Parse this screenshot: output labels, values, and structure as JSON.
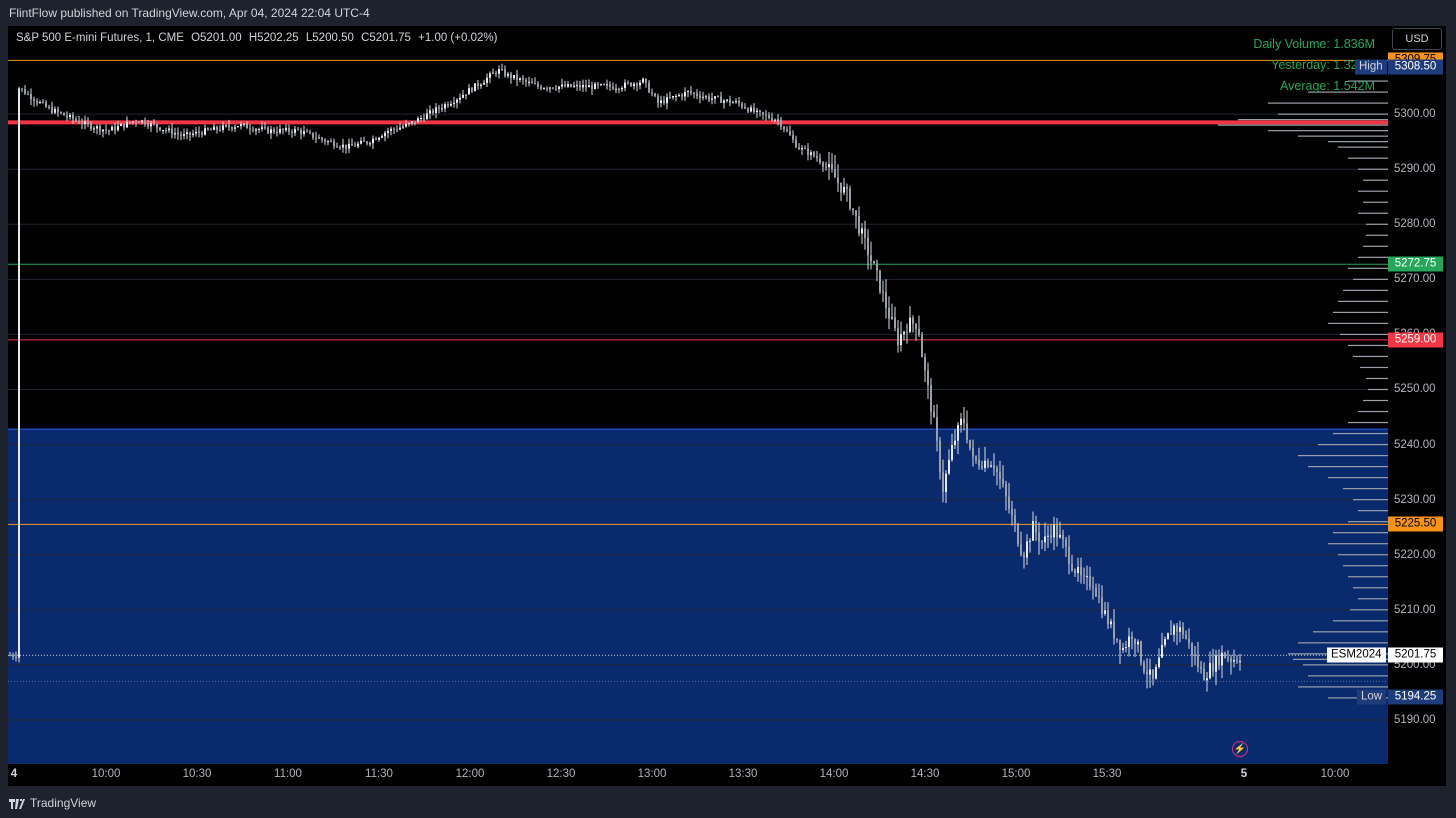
{
  "header": {
    "published": "FlintFlow published on TradingView.com, Apr 04, 2024 22:04 UTC-4"
  },
  "legend": {
    "symbol": "S&P 500 E-mini Futures, 1, CME",
    "open": "O5201.00",
    "high": "H5202.25",
    "low": "L5200.50",
    "close": "C5201.75",
    "change": "+1.00 (+0.02%)"
  },
  "volume": {
    "daily": "Daily Volume: 1.836M",
    "yesterday": "Yesterday: 1.322M",
    "average": "Average: 1.542M"
  },
  "currency": "USD",
  "colors": {
    "background": "#000000",
    "zone": "#0a2a6e",
    "up": "#26a65b",
    "down": "#f23645",
    "orange": "#f7931a",
    "high_low": "#1f3c7a"
  },
  "chart_data": {
    "type": "candlestick",
    "symbol": "ESM2024",
    "ylim": [
      5182,
      5316
    ],
    "y_ticks": [
      5190,
      5200,
      5210,
      5220,
      5230,
      5240,
      5250,
      5260,
      5270,
      5280,
      5290,
      5300
    ],
    "x_ticks": [
      "4",
      "10:00",
      "10:30",
      "11:00",
      "11:30",
      "12:00",
      "12:30",
      "13:00",
      "13:30",
      "14:00",
      "14:30",
      "15:00",
      "15:30",
      "5",
      "10:00"
    ],
    "price_labels": {
      "orange_high": "5309.75",
      "session_high": "5308.50",
      "green": "5272.75",
      "red": "5259.00",
      "orange_low": "5225.50",
      "last": "5201.75",
      "session_low": "5194.25"
    },
    "high_label": "High",
    "low_label": "Low",
    "symbol_label": "ESM2024",
    "levels": [
      {
        "price": 5309.75,
        "color": "#f7931a",
        "width": 1
      },
      {
        "price": 5298.5,
        "color": "#f23645",
        "width": 4
      },
      {
        "price": 5272.75,
        "color": "#26a65b",
        "width": 1
      },
      {
        "price": 5259.0,
        "color": "#f23645",
        "width": 1
      },
      {
        "price": 5225.5,
        "color": "#f7931a",
        "width": 1
      }
    ],
    "zone": {
      "top": 5242.8,
      "bottom": 5180
    },
    "path_points": [
      [
        9,
        5305
      ],
      [
        40,
        5301
      ],
      [
        80,
        5298
      ],
      [
        100,
        5297
      ],
      [
        130,
        5299
      ],
      [
        160,
        5297
      ],
      [
        175,
        5296
      ],
      [
        200,
        5297
      ],
      [
        230,
        5298
      ],
      [
        260,
        5297
      ],
      [
        290,
        5297
      ],
      [
        320,
        5295
      ],
      [
        340,
        5294
      ],
      [
        360,
        5295
      ],
      [
        380,
        5297
      ],
      [
        400,
        5298
      ],
      [
        420,
        5300
      ],
      [
        450,
        5303
      ],
      [
        475,
        5306
      ],
      [
        490,
        5308
      ],
      [
        500,
        5307
      ],
      [
        530,
        5305
      ],
      [
        580,
        5305
      ],
      [
        610,
        5305
      ],
      [
        635,
        5306
      ],
      [
        650,
        5302
      ],
      [
        680,
        5304
      ],
      [
        700,
        5303
      ],
      [
        730,
        5302
      ],
      [
        750,
        5300
      ],
      [
        770,
        5299
      ],
      [
        790,
        5294
      ],
      [
        810,
        5292
      ],
      [
        825,
        5289
      ],
      [
        840,
        5285
      ],
      [
        850,
        5280
      ],
      [
        860,
        5275
      ],
      [
        870,
        5270
      ],
      [
        880,
        5264
      ],
      [
        890,
        5259
      ],
      [
        900,
        5262
      ],
      [
        910,
        5262
      ],
      [
        915,
        5255
      ],
      [
        925,
        5245
      ],
      [
        935,
        5232
      ],
      [
        945,
        5240
      ],
      [
        955,
        5245
      ],
      [
        965,
        5237
      ],
      [
        975,
        5237
      ],
      [
        985,
        5237
      ],
      [
        995,
        5232
      ],
      [
        1005,
        5226
      ],
      [
        1015,
        5220
      ],
      [
        1025,
        5225
      ],
      [
        1035,
        5222
      ],
      [
        1045,
        5225
      ],
      [
        1055,
        5222
      ],
      [
        1065,
        5218
      ],
      [
        1075,
        5215
      ],
      [
        1085,
        5215
      ],
      [
        1095,
        5210
      ],
      [
        1105,
        5206
      ],
      [
        1115,
        5203
      ],
      [
        1125,
        5206
      ],
      [
        1135,
        5200
      ],
      [
        1145,
        5197
      ],
      [
        1155,
        5203
      ],
      [
        1165,
        5207
      ],
      [
        1175,
        5206
      ],
      [
        1185,
        5202
      ],
      [
        1195,
        5198
      ],
      [
        1205,
        5200
      ],
      [
        1215,
        5202
      ],
      [
        1225,
        5201
      ],
      [
        1235,
        5202
      ],
      [
        1242,
        5201.75
      ]
    ],
    "volume_profile_bins": [
      [
        5306,
        40
      ],
      [
        5304,
        80
      ],
      [
        5302,
        120
      ],
      [
        5300,
        110
      ],
      [
        5299,
        150
      ],
      [
        5298,
        170
      ],
      [
        5297,
        120
      ],
      [
        5296,
        90
      ],
      [
        5295,
        60
      ],
      [
        5294,
        50
      ],
      [
        5292,
        40
      ],
      [
        5290,
        30
      ],
      [
        5288,
        25
      ],
      [
        5286,
        30
      ],
      [
        5284,
        25
      ],
      [
        5282,
        30
      ],
      [
        5280,
        22
      ],
      [
        5278,
        22
      ],
      [
        5276,
        25
      ],
      [
        5274,
        30
      ],
      [
        5272,
        40
      ],
      [
        5270,
        35
      ],
      [
        5268,
        45
      ],
      [
        5266,
        50
      ],
      [
        5264,
        55
      ],
      [
        5262,
        60
      ],
      [
        5260,
        48
      ],
      [
        5258,
        40
      ],
      [
        5256,
        35
      ],
      [
        5254,
        28
      ],
      [
        5252,
        22
      ],
      [
        5250,
        20
      ],
      [
        5248,
        25
      ],
      [
        5246,
        30
      ],
      [
        5244,
        40
      ],
      [
        5242,
        55
      ],
      [
        5240,
        70
      ],
      [
        5238,
        90
      ],
      [
        5236,
        80
      ],
      [
        5234,
        60
      ],
      [
        5232,
        45
      ],
      [
        5230,
        35
      ],
      [
        5228,
        30
      ],
      [
        5226,
        40
      ],
      [
        5224,
        55
      ],
      [
        5222,
        60
      ],
      [
        5220,
        50
      ],
      [
        5218,
        45
      ],
      [
        5216,
        40
      ],
      [
        5214,
        35
      ],
      [
        5212,
        30
      ],
      [
        5210,
        38
      ],
      [
        5208,
        55
      ],
      [
        5206,
        75
      ],
      [
        5204,
        90
      ],
      [
        5202,
        100
      ],
      [
        5201,
        95
      ],
      [
        5200,
        85
      ],
      [
        5198,
        80
      ],
      [
        5196,
        90
      ],
      [
        5194,
        60
      ]
    ]
  },
  "footer": {
    "brand": "TradingView"
  }
}
